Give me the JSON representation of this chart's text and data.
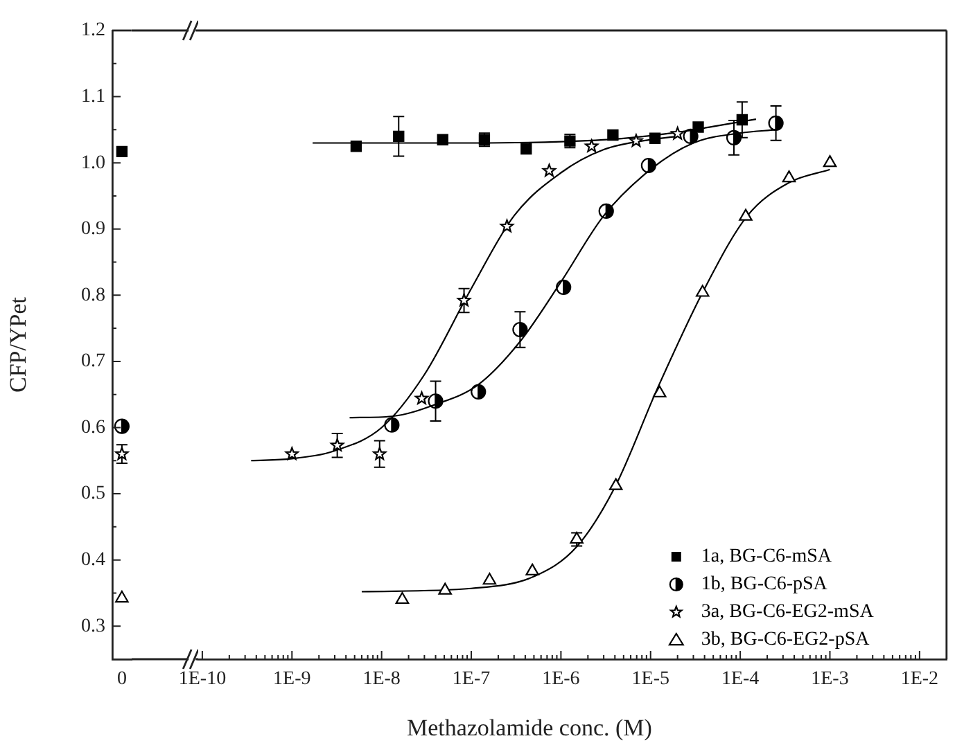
{
  "chart_data": [
    {
      "type": "scatter",
      "ylabel": "CFP/YPet",
      "categories": [
        "0"
      ],
      "ylim": [
        0.25,
        1.2
      ],
      "yticks": [
        0.3,
        0.4,
        0.5,
        0.6,
        0.7,
        0.8,
        0.9,
        {
          "value": 1.0,
          "label": "1.0"
        },
        1.1,
        1.2
      ],
      "series": [
        {
          "color": "#000000",
          "marker": "square",
          "values": [
            1.017
          ]
        },
        {
          "color": "#000000",
          "marker": "circle",
          "values": [
            0.602
          ]
        },
        {
          "color": "#000000",
          "marker": "star",
          "values": [
            0.56
          ],
          "errors": [
            0.014
          ]
        },
        {
          "color": "#000000",
          "marker": "triangle",
          "values": [
            0.342
          ]
        }
      ]
    },
    {
      "type": "scatter",
      "xlabel": "Methazolamide conc. (M)",
      "log": "x",
      "legend": "bottom right",
      "tick_labels": "x",
      "xlim": [
        9e-11,
        0.02
      ],
      "xticks": [
        {
          "value": 1e-10,
          "label": "1E-10"
        },
        {
          "value": 1e-09,
          "label": "1E-9"
        },
        {
          "value": 1e-08,
          "label": "1E-8"
        },
        {
          "value": 1e-07,
          "label": "1E-7"
        },
        {
          "value": 1e-06,
          "label": "1E-6"
        },
        {
          "value": 1e-05,
          "label": "1E-5"
        },
        {
          "value": 0.0001,
          "label": "1E-4"
        },
        {
          "value": 0.001,
          "label": "1E-3"
        },
        {
          "value": 0.01,
          "label": "1E-2"
        }
      ],
      "ylim": [
        0.25,
        1.2
      ],
      "yticks": [
        0.3,
        0.4,
        0.5,
        0.6,
        0.7,
        0.8,
        0.9,
        1,
        1.1,
        1.2
      ],
      "series": [
        {
          "name": "1a, BG-C6-mSA",
          "color": "#000000",
          "marker": "square",
          "x": [
            5.2e-09,
            1.55e-08,
            4.8e-08,
            1.4e-07,
            4.1e-07,
            1.26e-06,
            3.8e-06,
            1.12e-05,
            3.4e-05,
            0.000105
          ],
          "values": [
            1.025,
            1.04,
            1.035,
            1.035,
            1.021,
            1.033,
            1.042,
            1.037,
            1.054,
            1.065
          ],
          "errors": [
            null,
            0.03,
            null,
            0.01,
            null,
            0.01,
            null,
            null,
            null,
            0.027
          ]
        },
        {
          "name": "1b, BG-C6-pSA",
          "color": "#000000",
          "marker": "circle",
          "x": [
            1.3e-08,
            4e-08,
            1.2e-07,
            3.5e-07,
            1.07e-06,
            3.2e-06,
            9.5e-06,
            2.8e-05,
            8.5e-05,
            0.00025
          ],
          "values": [
            0.604,
            0.64,
            0.654,
            0.748,
            0.812,
            0.927,
            0.996,
            1.04,
            1.038,
            1.06
          ],
          "errors": [
            null,
            0.03,
            null,
            0.027,
            null,
            null,
            null,
            null,
            0.026,
            0.026
          ]
        },
        {
          "name": "3a, BG-C6-EG2-mSA",
          "color": "#000000",
          "marker": "star",
          "x": [
            1e-09,
            3.2e-09,
            9.5e-09,
            2.8e-08,
            8.3e-08,
            2.5e-07,
            7.4e-07,
            2.2e-06,
            6.9e-06,
            2e-05
          ],
          "values": [
            0.56,
            0.573,
            0.56,
            0.644,
            0.792,
            0.904,
            0.988,
            1.025,
            1.033,
            1.044
          ],
          "errors": [
            null,
            0.018,
            0.02,
            null,
            0.018,
            null,
            null,
            null,
            null,
            null
          ]
        },
        {
          "name": "3b, BG-C6-EG2-pSA",
          "color": "#000000",
          "marker": "triangle",
          "x": [
            1.7e-08,
            5.1e-08,
            1.6e-07,
            4.8e-07,
            1.5e-06,
            4.1e-06,
            1.26e-05,
            3.8e-05,
            0.000115,
            0.00035,
            0.001
          ],
          "values": [
            0.34,
            0.354,
            0.369,
            0.383,
            0.431,
            0.512,
            0.652,
            0.804,
            0.919,
            0.977,
            1.0
          ],
          "errors": [
            null,
            null,
            null,
            null,
            0.01,
            null,
            null,
            null,
            null,
            null,
            null
          ]
        },
        {
          "type": "line",
          "color": "#000000",
          "marker": "none",
          "x": [
            1.7e-09,
            1e-07,
            1e-06,
            5e-06,
            2e-05,
            5e-05,
            0.00015
          ],
          "values": [
            1.03,
            1.03,
            1.032,
            1.037,
            1.046,
            1.055,
            1.066
          ]
        },
        {
          "type": "line",
          "color": "#000000",
          "marker": "none",
          "x": [
            4.4e-09,
            1.3e-08,
            4e-08,
            1.2e-07,
            3.5e-07,
            1e-06,
            3e-06,
            1e-05,
            3e-05,
            0.0001,
            0.00025
          ],
          "values": [
            0.615,
            0.617,
            0.635,
            0.665,
            0.73,
            0.82,
            0.92,
            0.99,
            1.03,
            1.045,
            1.05
          ]
        },
        {
          "type": "line",
          "color": "#000000",
          "marker": "none",
          "x": [
            3.5e-10,
            1e-09,
            3e-09,
            1e-08,
            3e-08,
            1e-07,
            3e-07,
            1e-06,
            3e-06,
            1e-05,
            2e-05
          ],
          "values": [
            0.55,
            0.553,
            0.565,
            0.6,
            0.68,
            0.81,
            0.92,
            0.985,
            1.02,
            1.035,
            1.04
          ]
        },
        {
          "type": "line",
          "color": "#000000",
          "marker": "none",
          "x": [
            6e-09,
            1e-07,
            5e-07,
            1.5e-06,
            4e-06,
            1.2e-05,
            4e-05,
            0.00012,
            0.00035,
            0.001
          ],
          "values": [
            0.352,
            0.357,
            0.375,
            0.42,
            0.51,
            0.66,
            0.81,
            0.92,
            0.97,
            0.99
          ]
        }
      ]
    }
  ]
}
